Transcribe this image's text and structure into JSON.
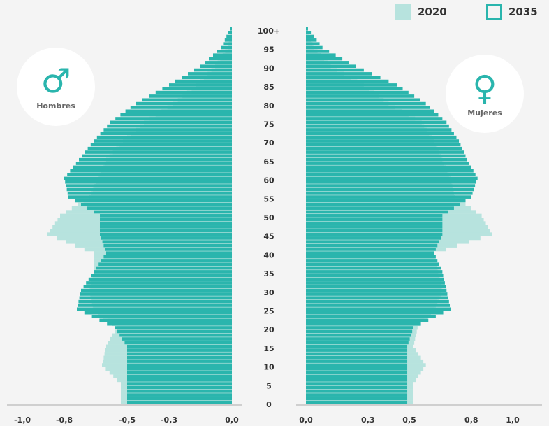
{
  "legend": [
    {
      "label": "2020",
      "color": "#b7e3de"
    },
    {
      "label": "2035",
      "color": "#2ab5ad"
    }
  ],
  "badges": {
    "male": {
      "label": "Hombres",
      "symbol": "♂",
      "icon": "male-symbol-icon"
    },
    "female": {
      "label": "Mujeres",
      "symbol": "♀",
      "icon": "female-symbol-icon"
    }
  },
  "chart_data": {
    "type": "bar",
    "orientation": "horizontal-population-pyramid",
    "age_ticks": [
      "0",
      "5",
      "10",
      "15",
      "20",
      "25",
      "30",
      "35",
      "40",
      "45",
      "50",
      "55",
      "60",
      "65",
      "70",
      "75",
      "80",
      "85",
      "90",
      "95",
      "100+"
    ],
    "x_ticks_left": [
      "-1,0",
      "-0,8",
      "-0,5",
      "-0,3",
      "0,0"
    ],
    "x_ticks_right": [
      "0,0",
      "0,3",
      "0,5",
      "0,8",
      "1,0"
    ],
    "xlim": [
      0,
      1.0
    ],
    "grid": false,
    "legend_position": "top-right",
    "ages": [
      0,
      5,
      10,
      15,
      20,
      25,
      30,
      35,
      40,
      45,
      50,
      55,
      60,
      65,
      70,
      75,
      80,
      85,
      90,
      95,
      100
    ],
    "series": [
      {
        "name": "2020",
        "sex": "Hombres",
        "values": [
          0.53,
          0.53,
          0.62,
          0.6,
          0.55,
          0.66,
          0.68,
          0.66,
          0.66,
          0.88,
          0.82,
          0.68,
          0.64,
          0.6,
          0.52,
          0.42,
          0.28,
          0.17,
          0.08,
          0.02,
          0.0
        ]
      },
      {
        "name": "2035",
        "sex": "Hombres",
        "values": [
          0.5,
          0.5,
          0.5,
          0.5,
          0.56,
          0.74,
          0.72,
          0.66,
          0.6,
          0.63,
          0.63,
          0.78,
          0.8,
          0.73,
          0.66,
          0.58,
          0.46,
          0.3,
          0.15,
          0.05,
          0.01
        ]
      },
      {
        "name": "2020",
        "sex": "Mujeres",
        "values": [
          0.52,
          0.52,
          0.58,
          0.52,
          0.54,
          0.62,
          0.66,
          0.64,
          0.62,
          0.9,
          0.85,
          0.72,
          0.7,
          0.66,
          0.62,
          0.56,
          0.4,
          0.28,
          0.12,
          0.04,
          0.0
        ]
      },
      {
        "name": "2035",
        "sex": "Mujeres",
        "values": [
          0.49,
          0.49,
          0.49,
          0.49,
          0.52,
          0.7,
          0.68,
          0.66,
          0.62,
          0.66,
          0.66,
          0.8,
          0.83,
          0.78,
          0.74,
          0.68,
          0.58,
          0.44,
          0.24,
          0.08,
          0.01
        ]
      }
    ]
  }
}
